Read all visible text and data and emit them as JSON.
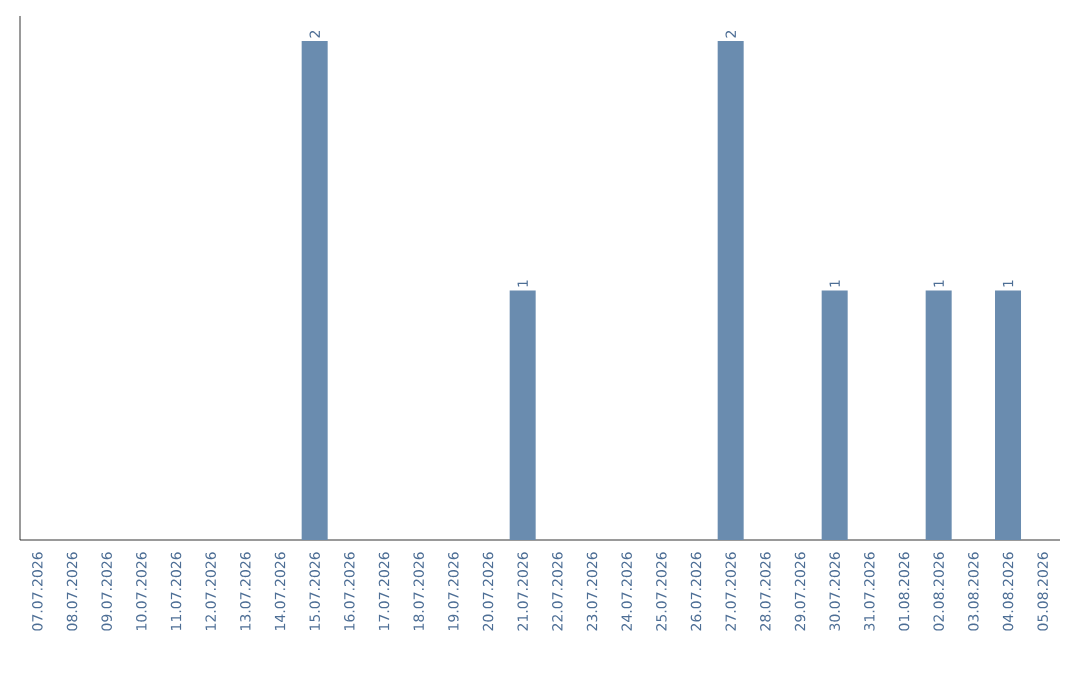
{
  "chart_data": {
    "type": "bar",
    "categories": [
      "07.07.2026",
      "08.07.2026",
      "09.07.2026",
      "10.07.2026",
      "11.07.2026",
      "12.07.2026",
      "13.07.2026",
      "14.07.2026",
      "15.07.2026",
      "16.07.2026",
      "17.07.2026",
      "18.07.2026",
      "19.07.2026",
      "20.07.2026",
      "21.07.2026",
      "22.07.2026",
      "23.07.2026",
      "24.07.2026",
      "25.07.2026",
      "26.07.2026",
      "27.07.2026",
      "28.07.2026",
      "29.07.2026",
      "30.07.2026",
      "31.07.2026",
      "01.08.2026",
      "02.08.2026",
      "03.08.2026",
      "04.08.2026",
      "05.08.2026"
    ],
    "values": [
      0,
      0,
      0,
      0,
      0,
      0,
      0,
      0,
      2,
      0,
      0,
      0,
      0,
      0,
      1,
      0,
      0,
      0,
      0,
      0,
      2,
      0,
      0,
      1,
      0,
      0,
      1,
      0,
      1,
      0
    ],
    "value_labels": [
      null,
      null,
      null,
      null,
      null,
      null,
      null,
      null,
      "2",
      null,
      null,
      null,
      null,
      null,
      "1",
      null,
      null,
      null,
      null,
      null,
      "2",
      null,
      null,
      "1",
      null,
      null,
      "1",
      null,
      "1",
      null
    ],
    "color": "#6a8caf",
    "tick_labels": "x"
  }
}
